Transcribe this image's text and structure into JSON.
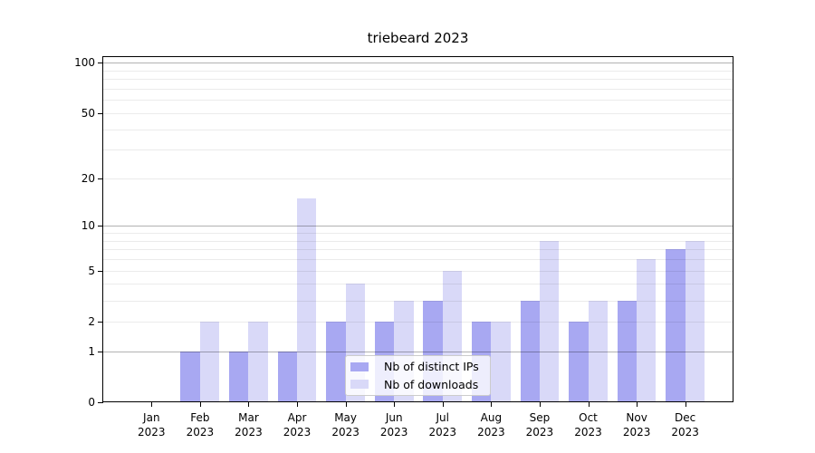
{
  "title": "triebeard 2023",
  "chart_data": {
    "type": "bar",
    "title": "triebeard 2023",
    "year": "2023",
    "categories": [
      "Jan",
      "Feb",
      "Mar",
      "Apr",
      "May",
      "Jun",
      "Jul",
      "Aug",
      "Sep",
      "Oct",
      "Nov",
      "Dec"
    ],
    "series": [
      {
        "name": "Nb of distinct IPs",
        "color": "#a8a8f2",
        "values": [
          0,
          1,
          1,
          1,
          2,
          2,
          3,
          2,
          3,
          2,
          3,
          7
        ]
      },
      {
        "name": "Nb of downloads",
        "color": "#d9d9f8",
        "values": [
          0,
          2,
          2,
          15,
          4,
          3,
          5,
          2,
          8,
          3,
          6,
          8
        ]
      }
    ],
    "y_axis": {
      "scale": "log10(1+value)",
      "tick_values": [
        0,
        1,
        2,
        5,
        10,
        20,
        50,
        100
      ],
      "major_gridline_values": [
        1,
        10,
        100
      ],
      "minor_gridline_values": [
        2,
        3,
        4,
        5,
        6,
        7,
        8,
        9,
        20,
        30,
        40,
        50,
        60,
        70,
        80,
        90
      ],
      "range_max": 110
    },
    "x_axis": {
      "tick_label_line2": "2023"
    },
    "legend": {
      "position": "lower-center",
      "entries": [
        "Nb of distinct IPs",
        "Nb of downloads"
      ]
    },
    "grid": true
  },
  "colors": {
    "background": "#ffffff",
    "axis": "#000000",
    "major_grid": "rgba(0,0,0,0.30)",
    "minor_grid": "rgba(0,0,0,0.08)",
    "bar_ips": "#a8a8f2",
    "bar_downloads": "#d9d9f8"
  }
}
